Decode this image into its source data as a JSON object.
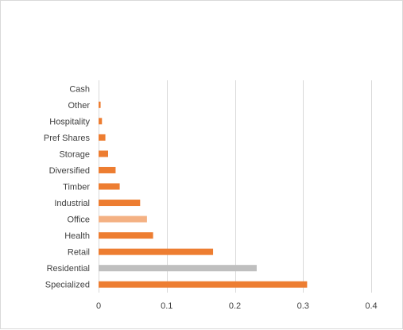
{
  "chart_data": {
    "type": "bar",
    "orientation": "horizontal",
    "title": "",
    "xlabel": "",
    "ylabel": "",
    "categories": [
      "Cash",
      "Other",
      "Hospitality",
      "Pref Shares",
      "Storage",
      "Diversified",
      "Timber",
      "Industrial",
      "Office",
      "Health",
      "Retail",
      "Residential",
      "Specialized"
    ],
    "values": [
      0.0,
      0.003,
      0.005,
      0.01,
      0.014,
      0.025,
      0.031,
      0.061,
      0.071,
      0.08,
      0.168,
      0.232,
      0.306
    ],
    "bar_colors": [
      "#ed7d31",
      "#ed7d31",
      "#ed7d31",
      "#ed7d31",
      "#ed7d31",
      "#ed7d31",
      "#ed7d31",
      "#ed7d31",
      "#f4b183",
      "#ed7d31",
      "#ed7d31",
      "#bfbfbf",
      "#ed7d31"
    ],
    "xlim": [
      0,
      0.4
    ],
    "xticks": [
      "0",
      "0.1",
      "0.2",
      "0.3",
      "0.4"
    ],
    "grid": "vertical",
    "legend": "none"
  }
}
